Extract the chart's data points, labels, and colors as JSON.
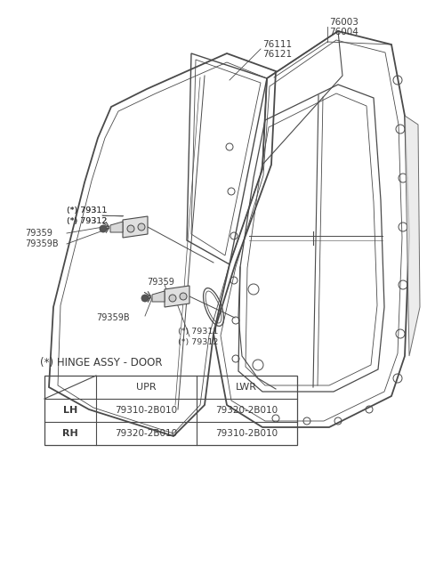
{
  "bg_color": "#ffffff",
  "line_color": "#4a4a4a",
  "text_color": "#3a3a3a",
  "title": "(*) HINGE ASSY - DOOR",
  "table_header_row": [
    "",
    "UPR",
    "LWR"
  ],
  "table_row1": [
    "LH",
    "79310-2B010",
    "79320-2B010"
  ],
  "table_row2": [
    "RH",
    "79320-2B010",
    "79310-2B010"
  ],
  "label_76003": "76003",
  "label_76004": "76004",
  "label_76111": "76111",
  "label_76121": "76121",
  "label_79311_upper": "(*) 79311",
  "label_79312_upper": "(*) 79312",
  "label_79311_lower": "(*) 79311",
  "label_79312_lower": "(*) 79312",
  "label_79359_left": "79359",
  "label_79359B_left": "79359B",
  "label_79359_mid": "79359",
  "label_79359B_lower": "79359B"
}
